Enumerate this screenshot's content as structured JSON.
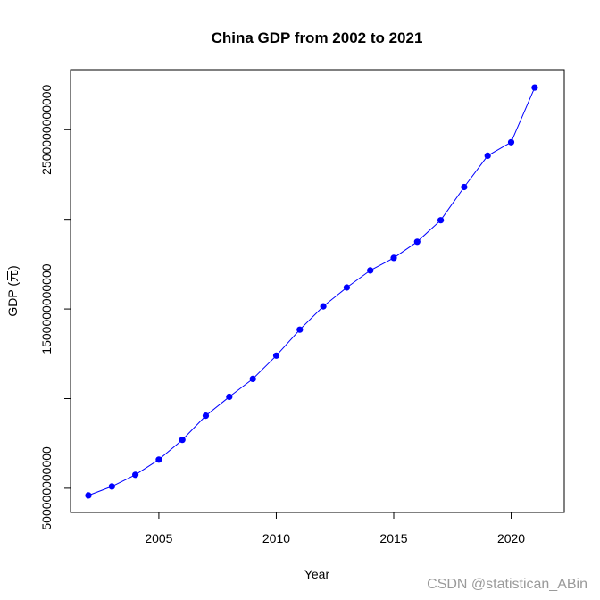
{
  "chart_data": {
    "type": "line",
    "title": "China GDP from 2002 to 2021",
    "xlabel": "Year",
    "ylabel": "GDP (元)",
    "x": [
      2002,
      2003,
      2004,
      2005,
      2006,
      2007,
      2008,
      2009,
      2010,
      2011,
      2012,
      2013,
      2014,
      2015,
      2016,
      2017,
      2018,
      2019,
      2020,
      2021
    ],
    "series": [
      {
        "values": [
          460000000000,
          510000000000,
          575000000000,
          660000000000,
          770000000000,
          905000000000,
          1010000000000,
          1110000000000,
          1240000000000,
          1385000000000,
          1515000000000,
          1620000000000,
          1715000000000,
          1785000000000,
          1875000000000,
          1995000000000,
          2180000000000,
          2355000000000,
          2430000000000,
          2735000000000
        ],
        "color": "#0000ff"
      }
    ],
    "xticks": [
      "2005",
      "2010",
      "2015",
      "2020"
    ],
    "yticks": [
      "500000000000",
      "1500000000000",
      "2500000000000"
    ],
    "ytick_positions": [
      500000000000,
      1000000000000,
      1500000000000,
      2000000000000,
      2500000000000
    ],
    "xlim": [
      2001.24,
      2022.26
    ],
    "ylim": [
      365000000000,
      2835000000000
    ],
    "grid": false,
    "legend": "none"
  },
  "watermark": "CSDN @statistican_ABin"
}
